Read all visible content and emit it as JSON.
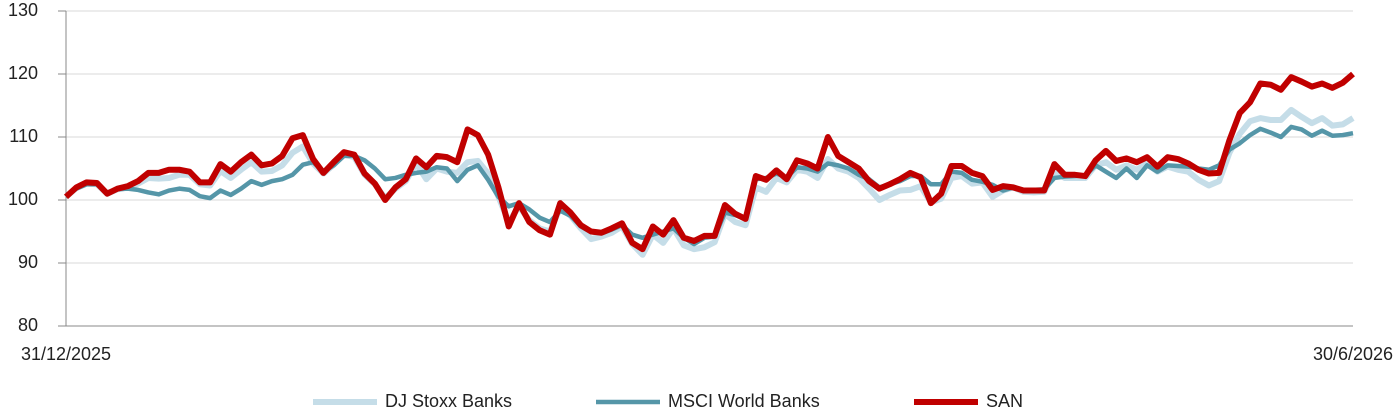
{
  "chart_data": {
    "type": "line",
    "categories": [
      "31/12/2025",
      null,
      null,
      null,
      null,
      null,
      null,
      null,
      null,
      null,
      null,
      null,
      null,
      null,
      null,
      null,
      null,
      null,
      null,
      null,
      null,
      null,
      null,
      null,
      null,
      null,
      null,
      null,
      null,
      null,
      null,
      null,
      null,
      null,
      null,
      null,
      null,
      null,
      null,
      null,
      null,
      null,
      null,
      null,
      null,
      null,
      null,
      null,
      null,
      null,
      null,
      null,
      null,
      null,
      null,
      null,
      null,
      null,
      null,
      null,
      null,
      null,
      null,
      null,
      null,
      null,
      null,
      null,
      null,
      null,
      null,
      null,
      null,
      null,
      null,
      null,
      null,
      null,
      null,
      null,
      null,
      null,
      null,
      null,
      null,
      null,
      null,
      null,
      null,
      null,
      null,
      null,
      null,
      null,
      null,
      null,
      null,
      null,
      null,
      null,
      null,
      null,
      null,
      null,
      null,
      null,
      null,
      null,
      null,
      null,
      null,
      null,
      null,
      null,
      null,
      null,
      null,
      null,
      null,
      null,
      null,
      null,
      null,
      null,
      null,
      "30/6/2026"
    ],
    "series": [
      {
        "name": "DJ Stoxx Banks",
        "color": "#c5dde8",
        "width": 6,
        "values": [
          100.5,
          101.9,
          102.6,
          102.5,
          101,
          101.7,
          102,
          102.6,
          103.5,
          103.4,
          103.5,
          104,
          104,
          102.5,
          102.3,
          104.6,
          103.5,
          104.8,
          106,
          104.5,
          104.6,
          105.5,
          107.5,
          108.5,
          105.8,
          104.2,
          105.6,
          107.2,
          106.8,
          104,
          102.5,
          100.3,
          101.8,
          103,
          105.8,
          103.3,
          105,
          104.5,
          104.3,
          106,
          106.2,
          104.2,
          100.5,
          96.5,
          99,
          96.8,
          95.5,
          95,
          98.8,
          97.5,
          95.5,
          93.8,
          94.2,
          94.8,
          95.8,
          93,
          91.3,
          94.5,
          93.2,
          95.5,
          92.8,
          92.2,
          92.5,
          93.3,
          97.8,
          96.5,
          96,
          102,
          101.3,
          103.5,
          102.8,
          104.8,
          104.5,
          103.5,
          106.5,
          105,
          104.5,
          103.5,
          101.8,
          100,
          100.8,
          101.5,
          101.6,
          102.2,
          99.6,
          100.2,
          103.5,
          103.8,
          102.6,
          102.8,
          100.5,
          101.5,
          102,
          101.3,
          101.2,
          101.3,
          104.5,
          103.5,
          103.5,
          103.5,
          105.5,
          106,
          104.8,
          105.5,
          104.8,
          105.8,
          104.5,
          105.3,
          104.8,
          104.5,
          103.2,
          102.3,
          103,
          107.5,
          110.5,
          112.5,
          113,
          112.7,
          112.7,
          114.3,
          113.2,
          112.2,
          113,
          111.8,
          112,
          113
        ]
      },
      {
        "name": "MSCI World Banks",
        "color": "#5596a8",
        "width": 4.5,
        "values": [
          100.5,
          101.8,
          102.5,
          102.5,
          101.2,
          101.7,
          101.8,
          101.6,
          101.2,
          100.9,
          101.5,
          101.8,
          101.6,
          100.6,
          100.3,
          101.5,
          100.8,
          101.8,
          103,
          102.4,
          103,
          103.3,
          104,
          105.6,
          106,
          104.5,
          105.5,
          107,
          107,
          106.3,
          105,
          103.3,
          103.5,
          104,
          104.3,
          104.5,
          105.2,
          105,
          103,
          104.8,
          105.5,
          103.2,
          100.5,
          99,
          99.5,
          98.5,
          97.2,
          96.5,
          98.3,
          97.5,
          95.8,
          94.9,
          94.7,
          95.3,
          96,
          94.5,
          94,
          94.5,
          95,
          95.5,
          94,
          93,
          94,
          94.2,
          98,
          97.6,
          97,
          103.3,
          103.5,
          104.2,
          103.6,
          105.2,
          105,
          104.5,
          105.8,
          105.5,
          105,
          104,
          103.3,
          102,
          102.5,
          103,
          103.8,
          103.8,
          102.5,
          102.5,
          104.5,
          104.3,
          103.2,
          102.9,
          102.4,
          101.5,
          102,
          101.6,
          101.6,
          101.7,
          103.5,
          103.7,
          103.8,
          103.9,
          105.5,
          104.5,
          103.5,
          105,
          103.5,
          105.5,
          104.5,
          105.5,
          105.4,
          105.3,
          105,
          104.8,
          105.5,
          108,
          109,
          110.3,
          111.3,
          110.7,
          110,
          111.6,
          111.2,
          110.2,
          111,
          110.2,
          110.3,
          110.6
        ]
      },
      {
        "name": "SAN",
        "color": "#c00000",
        "width": 6,
        "values": [
          100.5,
          102,
          102.8,
          102.7,
          101,
          101.8,
          102.2,
          103,
          104.3,
          104.3,
          104.8,
          104.8,
          104.5,
          102.8,
          102.8,
          105.7,
          104.5,
          106,
          107.2,
          105.5,
          105.8,
          107,
          109.8,
          110.3,
          106.5,
          104.3,
          106,
          107.6,
          107.2,
          104.2,
          102.6,
          100,
          102,
          103.3,
          106.6,
          105.2,
          107,
          106.8,
          106,
          111.2,
          110.3,
          107.2,
          102,
          95.8,
          99.5,
          96.5,
          95.2,
          94.5,
          99.5,
          98,
          96,
          95,
          94.8,
          95.5,
          96.3,
          93.2,
          92.2,
          95.8,
          94.5,
          96.8,
          94,
          93.5,
          94.3,
          94.3,
          99.2,
          97.8,
          97,
          103.8,
          103.2,
          104.7,
          103.3,
          106.3,
          105.8,
          105,
          110,
          107,
          106,
          105,
          103,
          101.8,
          102.5,
          103.3,
          104.3,
          103.6,
          99.5,
          101,
          105.4,
          105.4,
          104.3,
          103.8,
          101.6,
          102.2,
          102,
          101.5,
          101.5,
          101.5,
          105.7,
          104,
          104,
          103.8,
          106.3,
          107.8,
          106.2,
          106.6,
          106,
          106.8,
          105.3,
          106.8,
          106.5,
          105.8,
          104.8,
          104.2,
          104.3,
          109.5,
          113.8,
          115.5,
          118.5,
          118.3,
          117.5,
          119.5,
          118.8,
          118,
          118.5,
          117.8,
          118.6,
          120
        ]
      }
    ],
    "ylim": [
      80,
      130
    ],
    "yticks": [
      80,
      90,
      100,
      110,
      120,
      130
    ],
    "grid": true,
    "legend": "bottom"
  }
}
